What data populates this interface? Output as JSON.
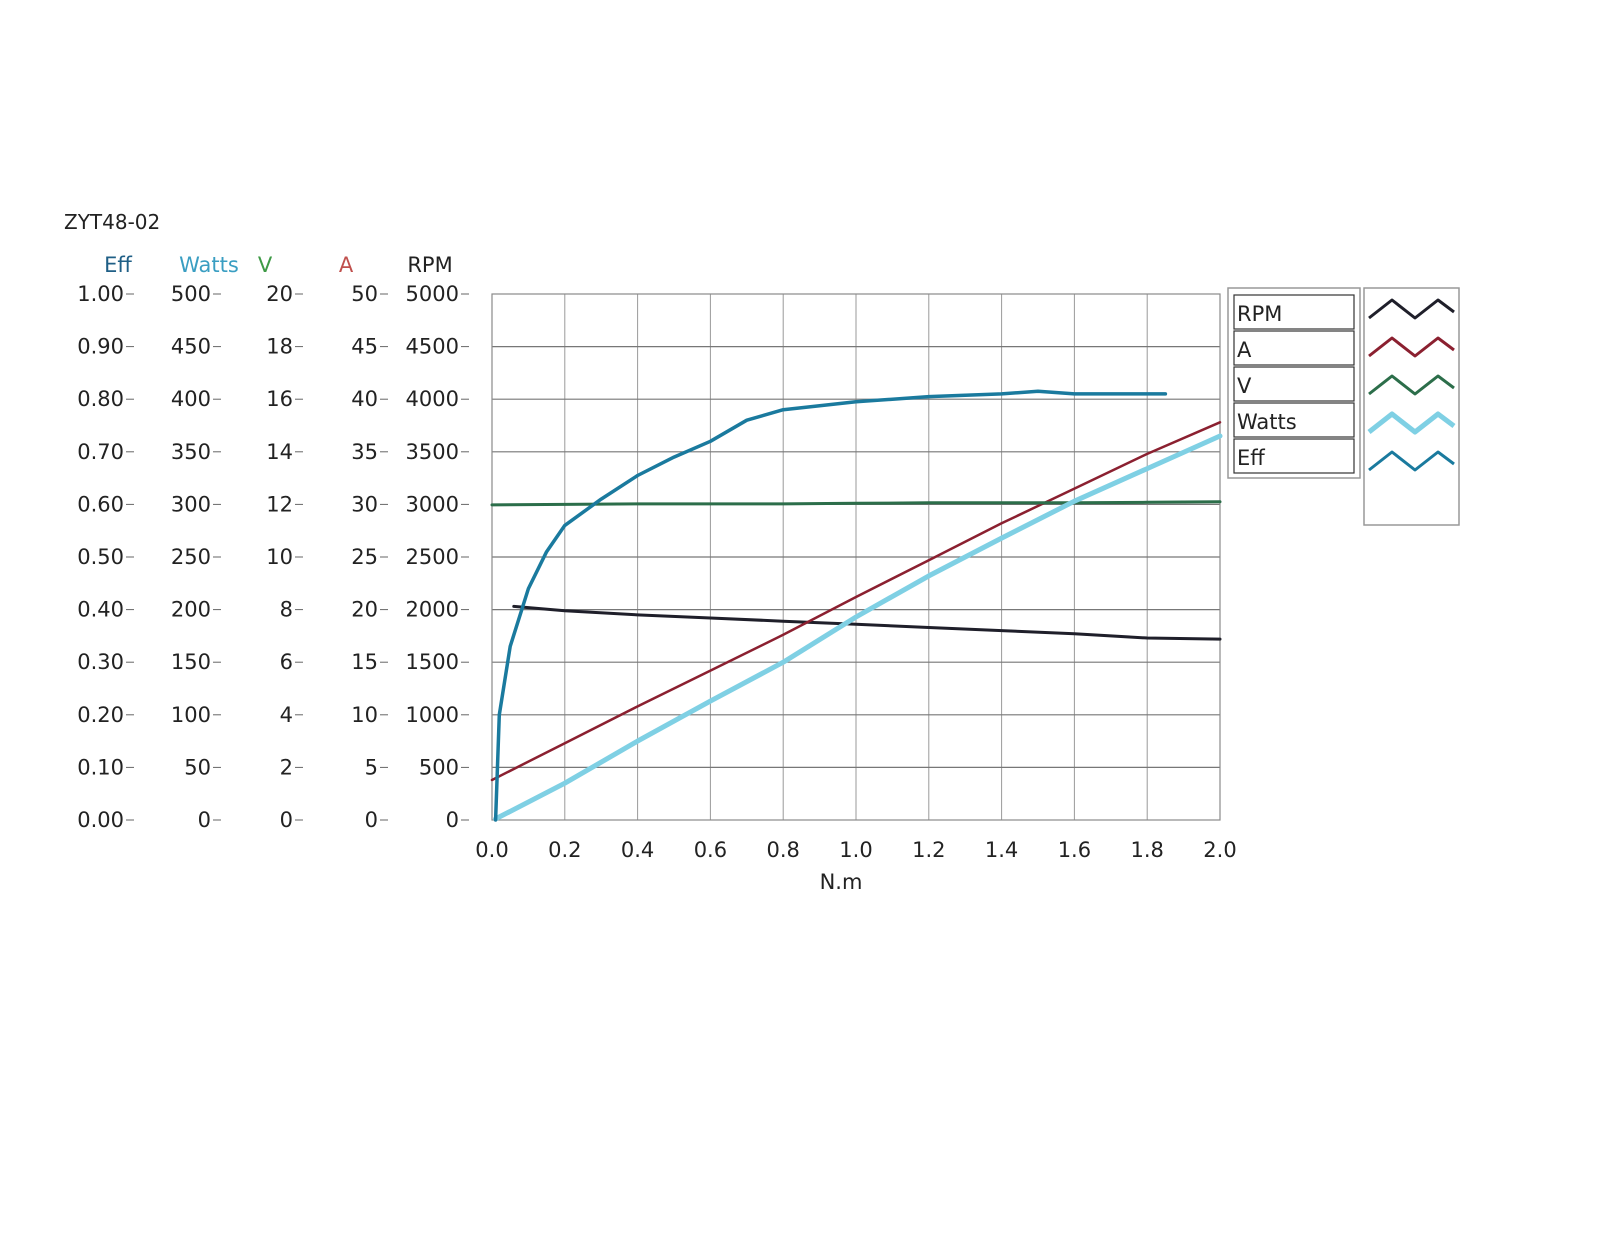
{
  "chart_data": {
    "type": "line",
    "title": "ZYT48-02",
    "xlabel": "N.m",
    "xlim": [
      0,
      2
    ],
    "x_ticks": [
      "0.0",
      "0.2",
      "0.4",
      "0.6",
      "0.8",
      "1.0",
      "1.2",
      "1.4",
      "1.6",
      "1.8",
      "2.0"
    ],
    "grid": true,
    "legend_position": "right",
    "axes": [
      {
        "name": "Eff",
        "color": "#1f5f86",
        "ylim": [
          0,
          1
        ],
        "ticks": [
          "0.00",
          "0.10",
          "0.20",
          "0.30",
          "0.40",
          "0.50",
          "0.60",
          "0.70",
          "0.80",
          "0.90",
          "1.00"
        ]
      },
      {
        "name": "Watts",
        "color": "#3a9ec2",
        "ylim": [
          0,
          500
        ],
        "ticks": [
          "0",
          "50",
          "100",
          "150",
          "200",
          "250",
          "300",
          "350",
          "400",
          "450",
          "500"
        ]
      },
      {
        "name": "V",
        "color": "#3e9a46",
        "ylim": [
          0,
          20
        ],
        "ticks": [
          "0",
          "2",
          "4",
          "6",
          "8",
          "10",
          "12",
          "14",
          "16",
          "18",
          "20"
        ]
      },
      {
        "name": "A",
        "color": "#c0504d",
        "ylim": [
          0,
          50
        ],
        "ticks": [
          "0",
          "5",
          "10",
          "15",
          "20",
          "25",
          "30",
          "35",
          "40",
          "45",
          "50"
        ]
      },
      {
        "name": "RPM",
        "color": "#222222",
        "ylim": [
          0,
          5000
        ],
        "ticks": [
          "0",
          "500",
          "1000",
          "1500",
          "2000",
          "2500",
          "3000",
          "3500",
          "4000",
          "4500",
          "5000"
        ]
      }
    ],
    "legend": [
      {
        "name": "RPM",
        "color": "#1f1f2a"
      },
      {
        "name": "A",
        "color": "#8b2030"
      },
      {
        "name": "V",
        "color": "#2c6e4a"
      },
      {
        "name": "Watts",
        "color": "#7fd0e4"
      },
      {
        "name": "Eff",
        "color": "#1a7a9e"
      }
    ],
    "series": [
      {
        "name": "RPM",
        "color": "#1f1f2a",
        "width": 3,
        "x": [
          0.06,
          0.2,
          0.4,
          0.6,
          0.8,
          1.0,
          1.2,
          1.4,
          1.6,
          1.8,
          2.0
        ],
        "y": [
          2030,
          1990,
          1950,
          1920,
          1890,
          1860,
          1830,
          1800,
          1770,
          1730,
          1720
        ]
      },
      {
        "name": "A",
        "color": "#8b2030",
        "width": 2.5,
        "x": [
          0.0,
          0.2,
          0.4,
          0.6,
          0.8,
          1.0,
          1.2,
          1.4,
          1.6,
          1.8,
          2.0
        ],
        "y": [
          3.8,
          7.3,
          10.8,
          14.2,
          17.6,
          21.2,
          24.7,
          28.2,
          31.5,
          34.8,
          37.8
        ]
      },
      {
        "name": "V",
        "color": "#2c6e4a",
        "width": 3,
        "x": [
          0.0,
          0.2,
          0.4,
          0.6,
          0.8,
          1.0,
          1.2,
          1.4,
          1.6,
          1.8,
          2.0
        ],
        "y": [
          11.98,
          12.0,
          12.02,
          12.02,
          12.02,
          12.04,
          12.06,
          12.06,
          12.06,
          12.08,
          12.1
        ]
      },
      {
        "name": "Watts",
        "color": "#7fd0e4",
        "width": 5,
        "x": [
          0.01,
          0.2,
          0.4,
          0.6,
          0.8,
          1.0,
          1.2,
          1.4,
          1.6,
          1.8,
          2.0
        ],
        "y": [
          1,
          35,
          75,
          113,
          150,
          193,
          232,
          268,
          303,
          334,
          365
        ]
      },
      {
        "name": "Eff",
        "color": "#1a7a9e",
        "width": 3.5,
        "x": [
          0.01,
          0.02,
          0.05,
          0.1,
          0.15,
          0.2,
          0.3,
          0.4,
          0.5,
          0.6,
          0.7,
          0.8,
          1.0,
          1.2,
          1.4,
          1.5,
          1.6,
          1.7,
          1.85
        ],
        "y": [
          0.0,
          0.2,
          0.33,
          0.44,
          0.51,
          0.56,
          0.61,
          0.655,
          0.69,
          0.72,
          0.76,
          0.78,
          0.795,
          0.805,
          0.81,
          0.815,
          0.81,
          0.81,
          0.81
        ]
      }
    ]
  }
}
